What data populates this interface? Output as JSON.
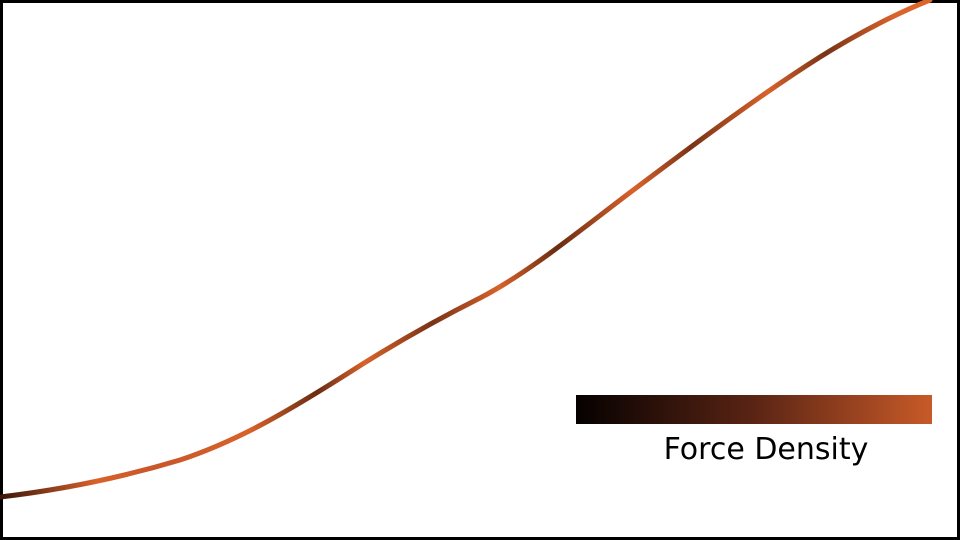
{
  "legend": {
    "label": "Force Density",
    "gradient_start_color": "#050100",
    "gradient_mid_color": "#5a2414",
    "gradient_end_color": "#c85a28"
  },
  "curve": {
    "line_color_low": "#3a1608",
    "line_color_high": "#d8622a"
  }
}
